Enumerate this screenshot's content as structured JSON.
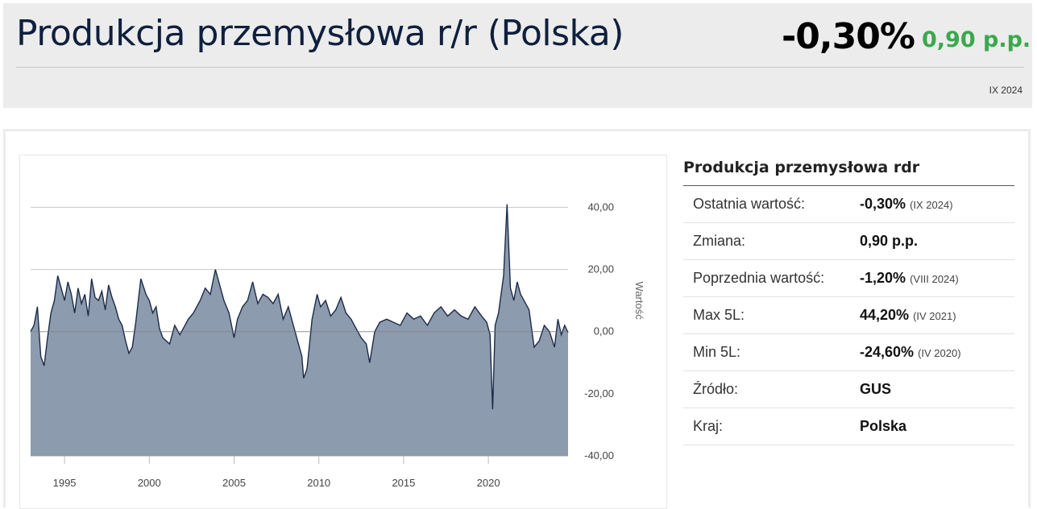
{
  "header": {
    "title": "Produkcja przemysłowa r/r (Polska)",
    "value": "-0,30%",
    "change": "0,90 p.p.",
    "period": "IX 2024",
    "change_color": "#3aa84c"
  },
  "sidebar": {
    "title": "Produkcja przemysłowa rdr",
    "rows": [
      {
        "label": "Ostatnia wartość:",
        "value": "-0,30%",
        "note": "(IX 2024)"
      },
      {
        "label": "Zmiana:",
        "value": "0,90 p.p.",
        "note": ""
      },
      {
        "label": "Poprzednia wartość:",
        "value": "-1,20%",
        "note": "(VIII 2024)"
      },
      {
        "label": "Max 5L:",
        "value": "44,20%",
        "note": "(IV 2021)"
      },
      {
        "label": "Min 5L:",
        "value": "-24,60%",
        "note": "(IV 2020)"
      },
      {
        "label": "Źródło:",
        "value": "GUS",
        "note": ""
      },
      {
        "label": "Kraj:",
        "value": "Polska",
        "note": ""
      }
    ]
  },
  "chart_data": {
    "type": "area",
    "title": "",
    "xlabel": "",
    "ylabel": "Wartość",
    "ylim": [
      -40,
      44
    ],
    "y_ticks": [
      40,
      20,
      0,
      -20,
      -40
    ],
    "y_tick_labels": [
      "40,00",
      "20,00",
      "0,00",
      "-20,00",
      "-40,00"
    ],
    "x_range": [
      1993.0,
      2024.7
    ],
    "x_ticks": [
      1995,
      2000,
      2005,
      2010,
      2015,
      2020
    ],
    "x_tick_labels": [
      "1995",
      "2000",
      "2005",
      "2010",
      "2015",
      "2020"
    ],
    "grid": true,
    "fill_color": "#8c9bad",
    "line_color": "#1c2b4a",
    "series": [
      {
        "x": [
          1993.0,
          1993.2,
          1993.4,
          1993.6,
          1993.8,
          1994.0,
          1994.2,
          1994.4,
          1994.6,
          1994.8,
          1995.0,
          1995.2,
          1995.4,
          1995.6,
          1995.8,
          1996.0,
          1996.2,
          1996.4,
          1996.6,
          1996.8,
          1997.0,
          1997.2,
          1997.4,
          1997.6,
          1997.8,
          1998.0,
          1998.2,
          1998.4,
          1998.6,
          1998.8,
          1999.0,
          1999.2,
          1999.5,
          1999.8,
          2000.0,
          2000.2,
          2000.4,
          2000.6,
          2000.8,
          2001.0,
          2001.2,
          2001.5,
          2001.8,
          2002.0,
          2002.3,
          2002.6,
          2003.0,
          2003.3,
          2003.6,
          2003.9,
          2004.2,
          2004.4,
          2004.7,
          2005.0,
          2005.2,
          2005.5,
          2005.8,
          2006.1,
          2006.4,
          2006.7,
          2007.0,
          2007.3,
          2007.6,
          2007.9,
          2008.2,
          2008.5,
          2008.8,
          2009.0,
          2009.1,
          2009.3,
          2009.6,
          2009.9,
          2010.1,
          2010.4,
          2010.7,
          2011.0,
          2011.3,
          2011.6,
          2011.9,
          2012.2,
          2012.5,
          2012.8,
          2013.0,
          2013.3,
          2013.6,
          2014.0,
          2014.4,
          2014.8,
          2015.2,
          2015.6,
          2016.0,
          2016.4,
          2016.8,
          2017.2,
          2017.6,
          2018.0,
          2018.4,
          2018.8,
          2019.2,
          2019.6,
          2019.9,
          2020.1,
          2020.25,
          2020.4,
          2020.6,
          2020.9,
          2021.1,
          2021.3,
          2021.5,
          2021.7,
          2021.9,
          2022.1,
          2022.4,
          2022.7,
          2023.0,
          2023.3,
          2023.6,
          2023.9,
          2024.1,
          2024.3,
          2024.5,
          2024.7
        ],
        "values": [
          0,
          2,
          8,
          -8,
          -11,
          -2,
          6,
          10,
          18,
          14,
          10,
          16,
          12,
          6,
          14,
          9,
          12,
          5,
          17,
          11,
          10,
          13,
          7,
          15,
          11,
          8,
          4,
          2,
          -3,
          -7,
          -5,
          3,
          17,
          12,
          10,
          6,
          8,
          1,
          -2,
          -3,
          -4,
          2,
          -1,
          1,
          4,
          6,
          10,
          14,
          12,
          20,
          14,
          10,
          6,
          -2,
          4,
          8,
          10,
          16,
          9,
          12,
          11,
          9,
          12,
          4,
          8,
          2,
          -4,
          -8,
          -15,
          -12,
          4,
          12,
          8,
          10,
          5,
          7,
          11,
          6,
          4,
          1,
          -2,
          -4,
          -10,
          0,
          3,
          4,
          3,
          2,
          6,
          4,
          5,
          2,
          6,
          8,
          5,
          7,
          5,
          4,
          8,
          5,
          3,
          -1,
          -25,
          2,
          6,
          18,
          41,
          14,
          10,
          16,
          12,
          10,
          7,
          -5,
          -3,
          2,
          0,
          -5,
          4,
          -1,
          2,
          -0.3
        ]
      }
    ]
  }
}
